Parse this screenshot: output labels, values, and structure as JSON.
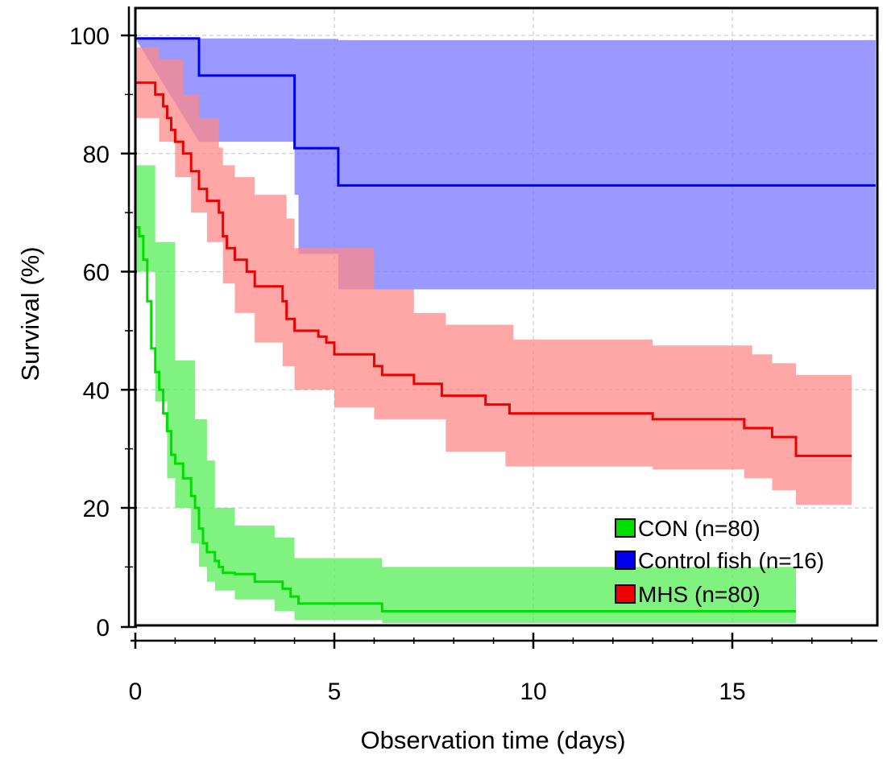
{
  "chart_data": {
    "type": "line",
    "subtype": "kaplan-meier survival curves with confidence bands",
    "xlabel": "Observation time (days)",
    "ylabel": "Survival (%)",
    "xlim": [
      0,
      18.7
    ],
    "ylim": [
      0,
      100
    ],
    "xticks": [
      0,
      5,
      10,
      15
    ],
    "yticks": [
      0,
      20,
      40,
      60,
      80,
      100
    ],
    "x_tick_labels": [
      "0",
      "5",
      "10",
      "15"
    ],
    "y_tick_labels": [
      "0",
      "20",
      "40",
      "60",
      "80",
      "100"
    ],
    "grid": true,
    "legend_position": "bottom-right",
    "series": [
      {
        "name": "CON (n=80)",
        "color": "#00dd00",
        "band_color": "#55ee55",
        "steps": [
          [
            0,
            67.5
          ],
          [
            0.1,
            66
          ],
          [
            0.2,
            62
          ],
          [
            0.3,
            55
          ],
          [
            0.4,
            47
          ],
          [
            0.5,
            43
          ],
          [
            0.6,
            40
          ],
          [
            0.7,
            36
          ],
          [
            0.8,
            33
          ],
          [
            0.9,
            29
          ],
          [
            1.0,
            27.5
          ],
          [
            1.2,
            25
          ],
          [
            1.4,
            22
          ],
          [
            1.5,
            20
          ],
          [
            1.6,
            16.5
          ],
          [
            1.7,
            14
          ],
          [
            1.8,
            12.5
          ],
          [
            2.0,
            11
          ],
          [
            2.1,
            10
          ],
          [
            2.2,
            9
          ],
          [
            2.5,
            8.8
          ],
          [
            3.0,
            7.5
          ],
          [
            3.7,
            6.3
          ],
          [
            3.9,
            5
          ],
          [
            4.1,
            3.8
          ],
          [
            6.2,
            2.5
          ],
          [
            16.6,
            2.5
          ]
        ],
        "upper": [
          [
            0,
            78
          ],
          [
            0.5,
            65
          ],
          [
            1.0,
            45
          ],
          [
            1.5,
            35
          ],
          [
            1.8,
            28
          ],
          [
            2.0,
            20
          ],
          [
            2.5,
            17
          ],
          [
            3.5,
            15
          ],
          [
            4.0,
            11.5
          ],
          [
            6.2,
            10
          ],
          [
            16.6,
            10
          ]
        ],
        "lower": [
          [
            0,
            60
          ],
          [
            0.5,
            38
          ],
          [
            0.8,
            25
          ],
          [
            1.0,
            20
          ],
          [
            1.4,
            14
          ],
          [
            1.6,
            10
          ],
          [
            1.8,
            7.5
          ],
          [
            2.0,
            6
          ],
          [
            2.5,
            4.5
          ],
          [
            3.5,
            2.5
          ],
          [
            4.0,
            1
          ],
          [
            6.2,
            0.5
          ],
          [
            16.6,
            0.5
          ]
        ]
      },
      {
        "name": "Control fish (n=16)",
        "color": "#0000ee",
        "band_color": "#7777ff",
        "steps": [
          [
            0,
            99.5
          ],
          [
            1.6,
            93.2
          ],
          [
            4.0,
            80.9
          ],
          [
            5.1,
            74.6
          ],
          [
            18.6,
            74.6
          ]
        ],
        "upper": [
          [
            0,
            99.5
          ],
          [
            4.0,
            99.4
          ],
          [
            5.1,
            99.2
          ],
          [
            18.6,
            99.2
          ]
        ],
        "lower": [
          [
            1.6,
            82
          ],
          [
            4.0,
            73
          ],
          [
            4.1,
            63
          ],
          [
            5.1,
            57
          ],
          [
            18.6,
            56.5
          ]
        ]
      },
      {
        "name": "MHS (n=80)",
        "color": "#ee0000",
        "band_color": "#ff8888",
        "steps": [
          [
            0,
            92
          ],
          [
            0.5,
            90
          ],
          [
            0.7,
            88
          ],
          [
            0.8,
            86
          ],
          [
            0.9,
            84
          ],
          [
            1.0,
            82
          ],
          [
            1.2,
            80
          ],
          [
            1.4,
            77
          ],
          [
            1.6,
            74
          ],
          [
            1.8,
            72
          ],
          [
            2.1,
            70
          ],
          [
            2.2,
            66
          ],
          [
            2.3,
            64
          ],
          [
            2.5,
            62
          ],
          [
            2.8,
            60
          ],
          [
            3.0,
            57.5
          ],
          [
            3.7,
            55
          ],
          [
            3.8,
            52
          ],
          [
            4.0,
            50
          ],
          [
            4.6,
            49
          ],
          [
            4.8,
            48
          ],
          [
            5.0,
            46
          ],
          [
            6.0,
            44
          ],
          [
            6.2,
            42.5
          ],
          [
            7.0,
            41
          ],
          [
            7.7,
            39
          ],
          [
            8.8,
            37.5
          ],
          [
            9.4,
            36
          ],
          [
            13.0,
            35
          ],
          [
            15.3,
            33.5
          ],
          [
            16.0,
            32
          ],
          [
            16.6,
            28.8
          ],
          [
            18.0,
            28.8
          ]
        ],
        "upper": [
          [
            0,
            98
          ],
          [
            0.6,
            96
          ],
          [
            1.2,
            90
          ],
          [
            1.6,
            86
          ],
          [
            2.1,
            81
          ],
          [
            2.2,
            78
          ],
          [
            2.5,
            76
          ],
          [
            3.0,
            73
          ],
          [
            3.8,
            69
          ],
          [
            4.0,
            64
          ],
          [
            6.0,
            57
          ],
          [
            7.0,
            53
          ],
          [
            7.8,
            51
          ],
          [
            9.5,
            48.5
          ],
          [
            13.0,
            47.5
          ],
          [
            15.5,
            46
          ],
          [
            16.0,
            44.5
          ],
          [
            16.6,
            42.5
          ],
          [
            18.0,
            41
          ]
        ],
        "lower": [
          [
            0,
            86
          ],
          [
            0.6,
            82
          ],
          [
            1.0,
            76
          ],
          [
            1.4,
            70
          ],
          [
            1.8,
            65
          ],
          [
            2.2,
            58
          ],
          [
            2.5,
            53
          ],
          [
            3.0,
            48
          ],
          [
            3.7,
            44
          ],
          [
            4.0,
            40
          ],
          [
            5.0,
            37
          ],
          [
            6.0,
            35
          ],
          [
            7.8,
            29.5
          ],
          [
            9.3,
            27
          ],
          [
            13.0,
            26.5
          ],
          [
            15.3,
            25
          ],
          [
            16.0,
            23
          ],
          [
            16.6,
            20.5
          ],
          [
            18.0,
            20.5
          ]
        ]
      }
    ]
  }
}
